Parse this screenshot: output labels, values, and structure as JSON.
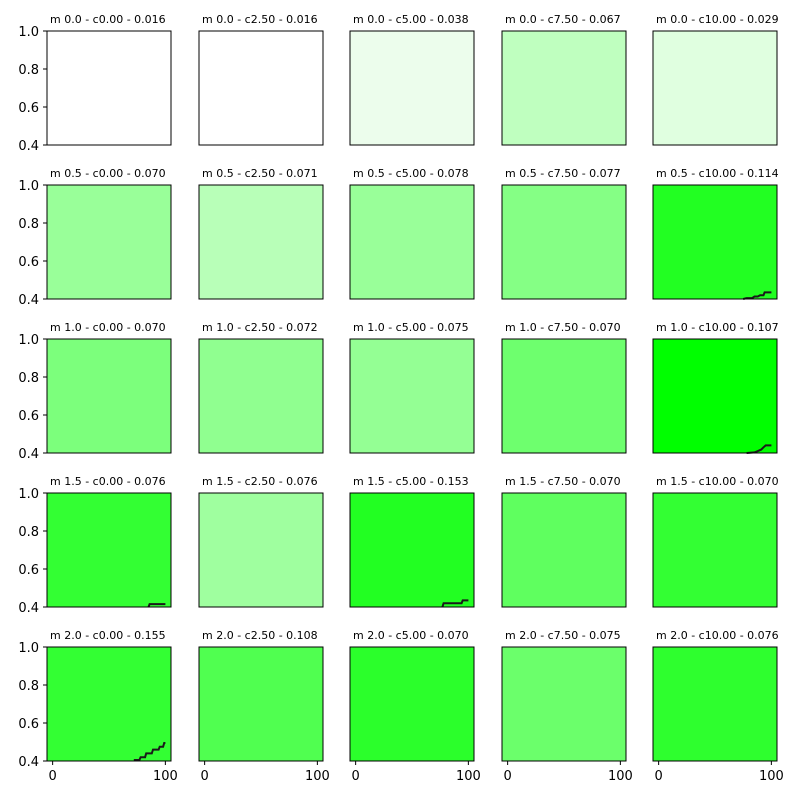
{
  "chart_data": {
    "type": "line",
    "layout": "5x5 grid of subplots",
    "shared_x_axis": {
      "xlim": [
        -5,
        105
      ],
      "ticks": [
        0,
        100
      ]
    },
    "shared_y_axis": {
      "ylim": [
        0.4,
        1.0
      ],
      "ticks": [
        "0.4",
        "0.6",
        "0.8",
        "1.0"
      ]
    },
    "grid": false,
    "panels": [
      {
        "title": "m 0.0 - c0.00 - 0.016",
        "background": "#ffffff",
        "series": []
      },
      {
        "title": "m 0.0 - c2.50 - 0.016",
        "background": "#ffffff",
        "series": []
      },
      {
        "title": "m 0.0 - c5.00 - 0.038",
        "background": "#ecfdec",
        "series": []
      },
      {
        "title": "m 0.0 - c7.50 - 0.067",
        "background": "#bfffbf",
        "series": []
      },
      {
        "title": "m 0.0 - c10.00 - 0.029",
        "background": "#e0ffe0",
        "series": []
      },
      {
        "title": "m 0.5 - c0.00 - 0.070",
        "background": "#99ff99",
        "series": []
      },
      {
        "title": "m 0.5 - c2.50 - 0.071",
        "background": "#b8ffb8",
        "series": []
      },
      {
        "title": "m 0.5 - c5.00 - 0.078",
        "background": "#99ff99",
        "series": []
      },
      {
        "title": "m 0.5 - c7.50 - 0.077",
        "background": "#85ff85",
        "series": []
      },
      {
        "title": "m 0.5 - c10.00 - 0.114",
        "background": "#22ff22",
        "series": [
          [
            75,
            0.4
          ],
          [
            78,
            0.405
          ],
          [
            83,
            0.405
          ],
          [
            85,
            0.413
          ],
          [
            88,
            0.413
          ],
          [
            90,
            0.42
          ],
          [
            93,
            0.42
          ],
          [
            94,
            0.435
          ],
          [
            100,
            0.435
          ]
        ]
      },
      {
        "title": "m 1.0 - c0.00 - 0.070",
        "background": "#7cff7c",
        "series": []
      },
      {
        "title": "m 1.0 - c2.50 - 0.072",
        "background": "#90ff90",
        "series": []
      },
      {
        "title": "m 1.0 - c5.00 - 0.075",
        "background": "#94ff94",
        "series": []
      },
      {
        "title": "m 1.0 - c7.50 - 0.070",
        "background": "#6eff6e",
        "series": []
      },
      {
        "title": "m 1.0 - c10.00 - 0.107",
        "background": "#00ff00",
        "series": [
          [
            78,
            0.4
          ],
          [
            85,
            0.403
          ],
          [
            88,
            0.41
          ],
          [
            91,
            0.418
          ],
          [
            93,
            0.43
          ],
          [
            95,
            0.44
          ],
          [
            100,
            0.44
          ]
        ]
      },
      {
        "title": "m 1.5 - c0.00 - 0.076",
        "background": "#33ff33",
        "series": [
          [
            85,
            0.4
          ],
          [
            86,
            0.415
          ],
          [
            100,
            0.415
          ]
        ]
      },
      {
        "title": "m 1.5 - c2.50 - 0.076",
        "background": "#9fff9f",
        "series": []
      },
      {
        "title": "m 1.5 - c5.00 - 0.153",
        "background": "#22ff22",
        "series": [
          [
            77,
            0.4
          ],
          [
            78,
            0.42
          ],
          [
            94,
            0.42
          ],
          [
            95,
            0.435
          ],
          [
            100,
            0.435
          ]
        ]
      },
      {
        "title": "m 1.5 - c7.50 - 0.070",
        "background": "#5fff5f",
        "series": []
      },
      {
        "title": "m 1.5 - c10.00 - 0.070",
        "background": "#33ff33",
        "series": []
      },
      {
        "title": "m 2.0 - c0.00 - 0.155",
        "background": "#33ff33",
        "series": [
          [
            72,
            0.405
          ],
          [
            77,
            0.405
          ],
          [
            78,
            0.42
          ],
          [
            82,
            0.42
          ],
          [
            83,
            0.44
          ],
          [
            88,
            0.44
          ],
          [
            89,
            0.46
          ],
          [
            94,
            0.46
          ],
          [
            95,
            0.475
          ],
          [
            98,
            0.475
          ],
          [
            99,
            0.495
          ],
          [
            100,
            0.495
          ]
        ]
      },
      {
        "title": "m 2.0 - c2.50 - 0.108",
        "background": "#50ff50",
        "series": []
      },
      {
        "title": "m 2.0 - c5.00 - 0.070",
        "background": "#2bff2b",
        "series": []
      },
      {
        "title": "m 2.0 - c7.50 - 0.075",
        "background": "#6bff6b",
        "series": []
      },
      {
        "title": "m 2.0 - c10.00 - 0.076",
        "background": "#2eff2e",
        "series": []
      }
    ]
  }
}
